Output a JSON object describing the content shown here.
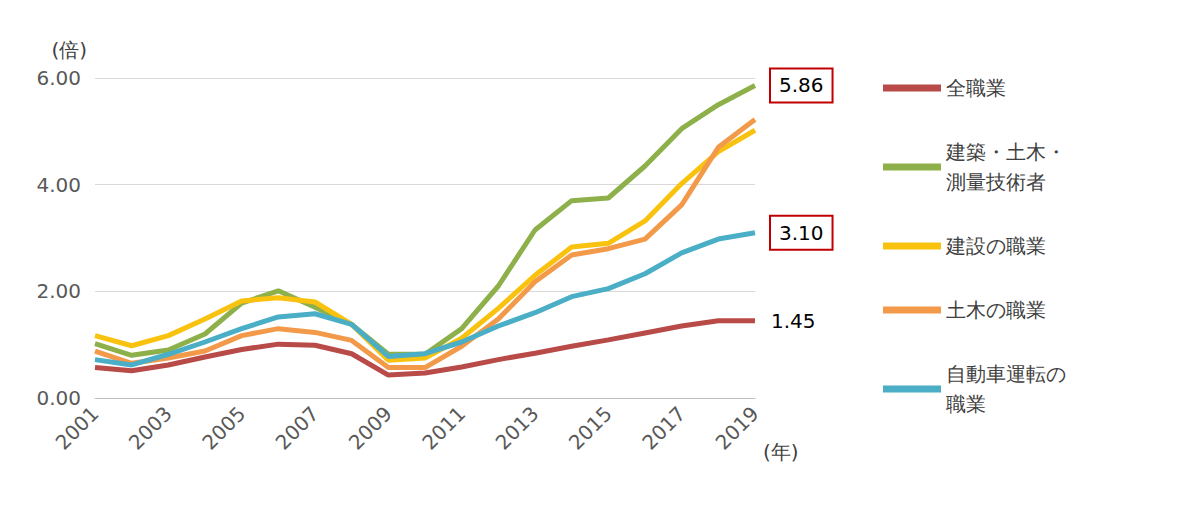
{
  "chart_data": {
    "type": "line",
    "y_label": "(倍)",
    "x_label": "(年)",
    "categories": [
      "2001",
      null,
      "2003",
      null,
      "2005",
      null,
      "2007",
      null,
      "2009",
      null,
      "2011",
      null,
      "2013",
      null,
      "2015",
      null,
      "2017",
      null,
      "2019"
    ],
    "series": [
      {
        "name": "全職業",
        "color": "#b84a47",
        "values": [
          0.57,
          0.51,
          0.62,
          0.77,
          0.91,
          1.01,
          0.99,
          0.83,
          0.43,
          0.47,
          0.58,
          0.72,
          0.84,
          0.97,
          1.09,
          1.22,
          1.35,
          1.45,
          1.45
        ]
      },
      {
        "name": "建築・土木・測量技術者",
        "color": "#8db04a",
        "values": [
          1.02,
          0.8,
          0.9,
          1.2,
          1.78,
          2.01,
          1.7,
          1.38,
          0.82,
          0.82,
          1.3,
          2.1,
          3.15,
          3.7,
          3.75,
          4.35,
          5.05,
          5.5,
          5.86
        ]
      },
      {
        "name": "建設の職業",
        "color": "#f9c20f",
        "values": [
          1.17,
          0.98,
          1.17,
          1.48,
          1.82,
          1.88,
          1.8,
          1.38,
          0.71,
          0.75,
          1.12,
          1.68,
          2.3,
          2.83,
          2.9,
          3.32,
          4.02,
          4.62,
          5.02
        ]
      },
      {
        "name": "土木の職業",
        "color": "#f39a4a",
        "values": [
          0.88,
          0.65,
          0.75,
          0.88,
          1.17,
          1.3,
          1.23,
          1.08,
          0.57,
          0.57,
          0.97,
          1.48,
          2.18,
          2.68,
          2.8,
          2.98,
          3.62,
          4.7,
          5.22
        ]
      },
      {
        "name": "自動車運転の職業",
        "color": "#4aaec6",
        "values": [
          0.72,
          0.62,
          0.82,
          1.05,
          1.3,
          1.52,
          1.58,
          1.38,
          0.78,
          0.83,
          1.05,
          1.35,
          1.6,
          1.9,
          2.05,
          2.33,
          2.72,
          2.98,
          3.1
        ]
      }
    ],
    "annotations": [
      {
        "series": "建築・土木・測量技術者",
        "x": "2019",
        "text": "5.86",
        "color": "#c00000"
      },
      {
        "series": "自動車運転の職業",
        "x": "2019",
        "text": "3.10",
        "color": "#c00000"
      },
      {
        "series": "全職業",
        "x": "2019",
        "text": "1.45"
      }
    ],
    "ylim": [
      0,
      6
    ],
    "yticks": [
      {
        "value": 0,
        "label": "0.00"
      },
      {
        "value": 2,
        "label": "2.00"
      },
      {
        "value": 4,
        "label": "4.00"
      },
      {
        "value": 6,
        "label": "6.00"
      }
    ],
    "grid": true,
    "legend": "right"
  }
}
